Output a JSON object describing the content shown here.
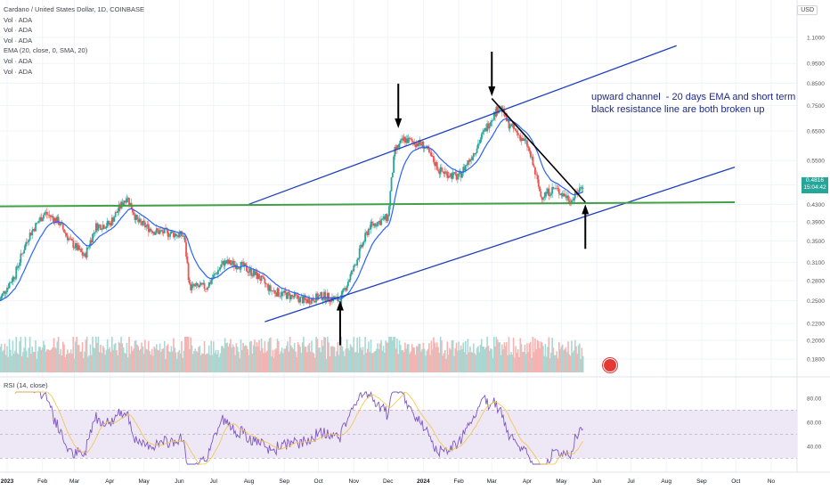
{
  "header": {
    "symbol_line": "Cardano / United States Dollar, 1D, COINBASE",
    "indicators": [
      "Vol · ADA",
      "Vol · ADA",
      "Vol · ADA",
      "EMA (20, close, 0, SMA, 20)",
      "Vol · ADA",
      "Vol · ADA"
    ],
    "rsi_label": "RSI (14, close)",
    "currency": "USD"
  },
  "annotation": {
    "text": "upward channel  - 20 days EMA and short term\nblack resistance line are both broken up"
  },
  "current_price": {
    "value": "0.4816",
    "countdown": "15:04:42"
  },
  "colors": {
    "up": "#26a69a",
    "down": "#ef5350",
    "ema": "#2962ff",
    "channel": "#1e3fbf",
    "support": "#43a047",
    "resistance": "#000000",
    "rsi": "#7e57c2",
    "rsi_ma": "#f6c342",
    "rsi_band": "#ede7f6"
  },
  "chart_data": {
    "type": "candlestick",
    "x_ticks": [
      "2023",
      "Feb",
      "Mar",
      "Apr",
      "May",
      "Jun",
      "Jul",
      "Aug",
      "Sep",
      "Oct",
      "Nov",
      "Dec",
      "2024",
      "Feb",
      "Mar",
      "Apr",
      "May",
      "Jun",
      "Jul",
      "Aug",
      "Sep",
      "Oct",
      "No"
    ],
    "y_ticks": [
      "1.1000",
      "0.9500",
      "0.8500",
      "0.7500",
      "0.6500",
      "0.5500",
      "0.4800",
      "0.4300",
      "0.3900",
      "0.3500",
      "0.3100",
      "0.2800",
      "0.2500",
      "0.2200",
      "0.2000",
      "0.1800"
    ],
    "y_scale": "log",
    "price_path": [
      [
        "2022-12-25",
        0.25
      ],
      [
        "2023-01-08",
        0.29
      ],
      [
        "2023-01-20",
        0.36
      ],
      [
        "2023-02-03",
        0.41
      ],
      [
        "2023-02-15",
        0.39
      ],
      [
        "2023-02-25",
        0.35
      ],
      [
        "2023-03-10",
        0.32
      ],
      [
        "2023-03-20",
        0.38
      ],
      [
        "2023-04-01",
        0.385
      ],
      [
        "2023-04-16",
        0.45
      ],
      [
        "2023-04-25",
        0.39
      ],
      [
        "2023-05-10",
        0.37
      ],
      [
        "2023-05-25",
        0.365
      ],
      [
        "2023-06-05",
        0.36
      ],
      [
        "2023-06-10",
        0.27
      ],
      [
        "2023-06-25",
        0.27
      ],
      [
        "2023-07-10",
        0.31
      ],
      [
        "2023-07-25",
        0.305
      ],
      [
        "2023-08-10",
        0.285
      ],
      [
        "2023-08-20",
        0.265
      ],
      [
        "2023-09-05",
        0.257
      ],
      [
        "2023-09-20",
        0.25
      ],
      [
        "2023-10-05",
        0.257
      ],
      [
        "2023-10-20",
        0.25
      ],
      [
        "2023-11-01",
        0.3
      ],
      [
        "2023-11-15",
        0.38
      ],
      [
        "2023-12-01",
        0.4
      ],
      [
        "2023-12-07",
        0.58
      ],
      [
        "2023-12-15",
        0.62
      ],
      [
        "2024-01-01",
        0.6
      ],
      [
        "2024-01-15",
        0.52
      ],
      [
        "2024-02-01",
        0.5
      ],
      [
        "2024-02-15",
        0.58
      ],
      [
        "2024-03-01",
        0.7
      ],
      [
        "2024-03-08",
        0.75
      ],
      [
        "2024-03-15",
        0.68
      ],
      [
        "2024-04-01",
        0.6
      ],
      [
        "2024-04-13",
        0.45
      ],
      [
        "2024-04-25",
        0.47
      ],
      [
        "2024-05-10",
        0.44
      ],
      [
        "2024-05-20",
        0.4816
      ]
    ],
    "ema_period": 20,
    "lines": [
      {
        "name": "upper-channel",
        "points": [
          [
            "2023-08-01",
            0.43
          ],
          [
            "2024-08-10",
            1.05
          ]
        ]
      },
      {
        "name": "lower-channel",
        "points": [
          [
            "2023-08-15",
            0.222
          ],
          [
            "2024-09-30",
            0.53
          ]
        ]
      },
      {
        "name": "horizontal-support",
        "points": [
          [
            "2022-12-25",
            0.425
          ],
          [
            "2024-09-30",
            0.435
          ]
        ]
      },
      {
        "name": "black-resistance",
        "points": [
          [
            "2024-03-01",
            0.78
          ],
          [
            "2024-05-22",
            0.435
          ]
        ]
      }
    ],
    "arrows": [
      {
        "points_to": [
          "2023-12-10",
          0.66
        ],
        "direction": "down"
      },
      {
        "points_to": [
          "2024-03-01",
          0.79
        ],
        "direction": "down"
      },
      {
        "points_to": [
          "2023-10-20",
          0.25
        ],
        "direction": "up"
      },
      {
        "points_to": [
          "2024-05-22",
          0.43
        ],
        "direction": "up"
      }
    ],
    "rsi": {
      "ticks": [
        "80.00",
        "60.00",
        "40.00"
      ],
      "band": [
        30,
        70
      ],
      "midline": 50
    }
  }
}
